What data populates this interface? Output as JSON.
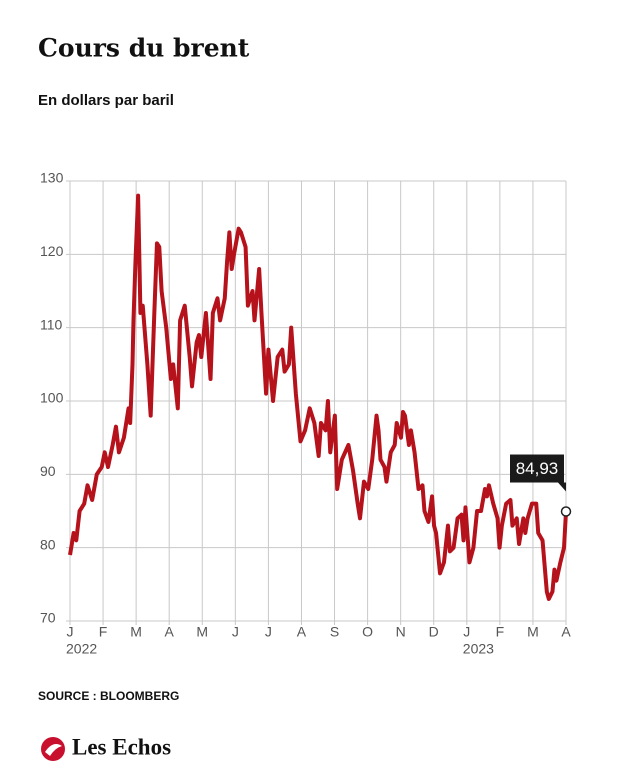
{
  "chart_data": {
    "type": "line",
    "title": "Cours du brent",
    "subtitle": "En dollars par baril",
    "source": "SOURCE : BLOOMBERG",
    "logo": "Les Echos",
    "x": [
      0,
      0.11,
      0.19,
      0.29,
      0.43,
      0.53,
      0.67,
      0.81,
      0.96,
      1.05,
      1.15,
      1.29,
      1.39,
      1.48,
      1.63,
      1.77,
      1.82,
      1.89,
      1.92,
      1.98,
      2.06,
      2.13,
      2.2,
      2.34,
      2.44,
      2.55,
      2.63,
      2.7,
      2.77,
      2.91,
      3.05,
      3.12,
      3.26,
      3.33,
      3.47,
      3.62,
      3.69,
      3.83,
      3.9,
      3.97,
      4.11,
      4.25,
      4.32,
      4.46,
      4.54,
      4.68,
      4.75,
      4.82,
      4.89,
      4.96,
      5.1,
      5.17,
      5.31,
      5.38,
      5.52,
      5.58,
      5.72,
      5.79,
      5.93,
      6,
      6.14,
      6.28,
      6.42,
      6.49,
      6.62,
      6.69,
      6.83,
      6.97,
      7.11,
      7.25,
      7.39,
      7.52,
      7.59,
      7.73,
      7.8,
      7.87,
      8.01,
      8.08,
      8.22,
      8.42,
      8.56,
      8.7,
      8.77,
      8.89,
      9.02,
      9.14,
      9.27,
      9.33,
      9.39,
      9.51,
      9.57,
      9.7,
      9.82,
      9.88,
      10.01,
      10.07,
      10.13,
      10.25,
      10.31,
      10.42,
      10.54,
      10.66,
      10.72,
      10.84,
      10.95,
      11.01,
      11.07,
      11.19,
      11.31,
      11.43,
      11.49,
      11.6,
      11.72,
      11.84,
      11.9,
      11.96,
      12.08,
      12.2,
      12.31,
      12.43,
      12.55,
      12.61,
      12.67,
      12.8,
      12.93,
      12.99,
      13.06,
      13.19,
      13.32,
      13.38,
      13.51,
      13.58,
      13.71,
      13.77,
      13.84,
      13.97,
      14.1,
      14.16,
      14.29,
      14.42,
      14.48,
      14.59,
      14.65,
      14.71,
      14.83,
      14.94,
      15
    ],
    "series": [
      {
        "color": "#b5121b",
        "values": [
          79,
          82,
          81,
          85,
          86,
          88.5,
          86.5,
          90,
          91,
          93,
          91,
          94,
          96.5,
          93,
          95,
          99,
          97,
          105,
          111,
          119,
          128,
          112,
          113,
          105,
          98,
          112,
          121.5,
          121,
          115,
          110,
          103,
          105,
          99,
          111,
          113,
          106,
          102,
          108,
          109,
          106,
          112,
          103,
          112,
          114,
          111,
          114,
          119,
          123,
          118,
          120,
          123.5,
          123,
          121,
          113,
          115,
          111,
          118,
          112,
          101,
          107,
          100,
          106,
          107,
          104,
          105,
          110,
          101,
          94.5,
          96,
          99,
          97,
          92.5,
          97,
          96,
          100,
          93,
          98,
          88,
          92,
          94,
          90.5,
          86,
          84,
          89,
          88,
          92,
          98,
          96,
          92,
          91,
          89,
          93,
          94,
          97,
          95,
          98.5,
          98,
          94,
          96,
          93,
          88,
          88.5,
          85,
          83.5,
          87,
          83,
          82,
          76.5,
          78,
          83,
          79.5,
          80,
          84,
          84.5,
          81,
          85.5,
          78,
          80,
          85,
          85,
          88,
          87,
          88.5,
          86,
          84,
          80,
          83,
          86,
          86.5,
          83,
          84,
          80.5,
          84,
          82,
          84,
          86,
          86,
          82,
          81,
          74,
          73,
          74,
          77,
          75.5,
          78,
          80,
          84.93
        ],
        "value_labels": [
          null,
          null,
          null,
          null,
          null,
          null,
          null,
          null,
          null,
          null,
          null,
          null,
          null,
          null,
          null,
          null,
          null,
          null,
          null,
          null,
          null,
          null,
          null,
          null,
          null,
          null,
          null,
          null,
          null,
          null,
          null,
          null,
          null,
          null,
          null,
          null,
          null,
          null,
          null,
          null,
          null,
          null,
          null,
          null,
          null,
          null,
          null,
          null,
          null,
          null,
          null,
          null,
          null,
          null,
          null,
          null,
          null,
          null,
          null,
          null,
          null,
          null,
          null,
          null,
          null,
          null,
          null,
          null,
          null,
          null,
          null,
          null,
          null,
          null,
          null,
          null,
          null,
          null,
          null,
          null,
          null,
          null,
          null,
          null,
          null,
          null,
          null,
          null,
          null,
          null,
          null,
          null,
          null,
          null,
          null,
          null,
          null,
          null,
          null,
          null,
          null,
          null,
          null,
          null,
          null,
          null,
          null,
          null,
          null,
          null,
          null,
          null,
          null,
          null,
          null,
          null,
          null,
          null,
          null,
          null,
          null,
          null,
          null,
          null,
          null,
          null,
          null,
          null,
          null,
          null,
          null,
          null,
          null,
          null,
          null,
          null,
          null,
          null,
          null,
          null,
          null,
          null,
          null,
          null,
          null,
          null,
          "84,93"
        ]
      }
    ],
    "xlim": [
      0,
      15
    ],
    "xticks": [
      {
        "value": 0,
        "label": "J"
      },
      {
        "value": 1,
        "label": "F"
      },
      {
        "value": 2,
        "label": "M"
      },
      {
        "value": 3,
        "label": "A"
      },
      {
        "value": 4,
        "label": "M"
      },
      {
        "value": 5,
        "label": "J"
      },
      {
        "value": 6,
        "label": "J"
      },
      {
        "value": 7,
        "label": "A"
      },
      {
        "value": 8,
        "label": "S"
      },
      {
        "value": 9,
        "label": "O"
      },
      {
        "value": 10,
        "label": "N"
      },
      {
        "value": 11,
        "label": "D"
      },
      {
        "value": 12,
        "label": "J"
      },
      {
        "value": 13,
        "label": "F"
      },
      {
        "value": 14,
        "label": "M"
      },
      {
        "value": 15,
        "label": "A"
      }
    ],
    "x_year_labels": [
      {
        "value": 0,
        "label": "2022"
      },
      {
        "value": 12,
        "label": "2023"
      }
    ],
    "ylim": [
      70,
      130
    ],
    "yticks": [
      70,
      80,
      90,
      100,
      110,
      120,
      130
    ],
    "grid": true
  }
}
